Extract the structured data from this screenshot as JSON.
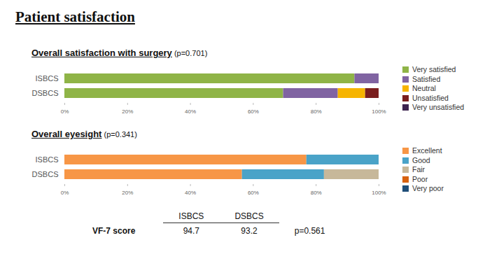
{
  "title": "Patient satisfaction",
  "chart_data": [
    {
      "type": "bar",
      "orientation": "horizontal",
      "stacked": true,
      "title": "Overall satisfaction with surgery",
      "annotations": [
        "(p=0.701)"
      ],
      "categories": [
        "ISBCS",
        "DSBCS"
      ],
      "series": [
        {
          "name": "Very satisfied",
          "color": "#8fb447",
          "values": [
            92.3,
            69.6
          ]
        },
        {
          "name": "Satisfied",
          "color": "#8064a2",
          "values": [
            7.7,
            17.4
          ]
        },
        {
          "name": "Neutral",
          "color": "#f6b400",
          "values": [
            0,
            8.7
          ]
        },
        {
          "name": "Unsatisfied",
          "color": "#7a1e1e",
          "values": [
            0,
            4.3
          ]
        },
        {
          "name": "Very unsatisfied",
          "color": "#3d2450",
          "values": [
            0,
            0
          ]
        }
      ],
      "xlim": [
        0,
        100
      ],
      "xticks": [
        {
          "value": 0,
          "label": "0%"
        },
        {
          "value": 20,
          "label": "20%"
        },
        {
          "value": 40,
          "label": "40%"
        },
        {
          "value": 60,
          "label": "60%"
        },
        {
          "value": 80,
          "label": "80%"
        },
        {
          "value": 100,
          "label": "100%"
        }
      ],
      "grid": false,
      "legend": "right"
    },
    {
      "type": "bar",
      "orientation": "horizontal",
      "stacked": true,
      "title": "Overall eyesight",
      "annotations": [
        "(p=0.341)"
      ],
      "categories": [
        "ISBCS",
        "DSBCS"
      ],
      "series": [
        {
          "name": "Excellent",
          "color": "#f79646",
          "values": [
            77.0,
            56.5
          ]
        },
        {
          "name": "Good",
          "color": "#4aa3c8",
          "values": [
            23.0,
            26.1
          ]
        },
        {
          "name": "Fair",
          "color": "#c7b89a",
          "values": [
            0,
            17.4
          ]
        },
        {
          "name": "Poor",
          "color": "#d8620f",
          "values": [
            0,
            0
          ]
        },
        {
          "name": "Very poor",
          "color": "#1f4e79",
          "values": [
            0,
            0
          ]
        }
      ],
      "xlim": [
        0,
        100
      ],
      "xticks": [
        {
          "value": 0,
          "label": "0%"
        },
        {
          "value": 20,
          "label": "20%"
        },
        {
          "value": 40,
          "label": "40%"
        },
        {
          "value": 60,
          "label": "60%"
        },
        {
          "value": 80,
          "label": "80%"
        },
        {
          "value": 100,
          "label": "100%"
        }
      ],
      "grid": false,
      "legend": "right"
    }
  ],
  "table": {
    "header": [
      "ISBCS",
      "DSBCS"
    ],
    "rows": [
      {
        "label": "VF-7 score",
        "values": [
          94.7,
          93.2
        ],
        "note": "p=0.561"
      }
    ]
  }
}
